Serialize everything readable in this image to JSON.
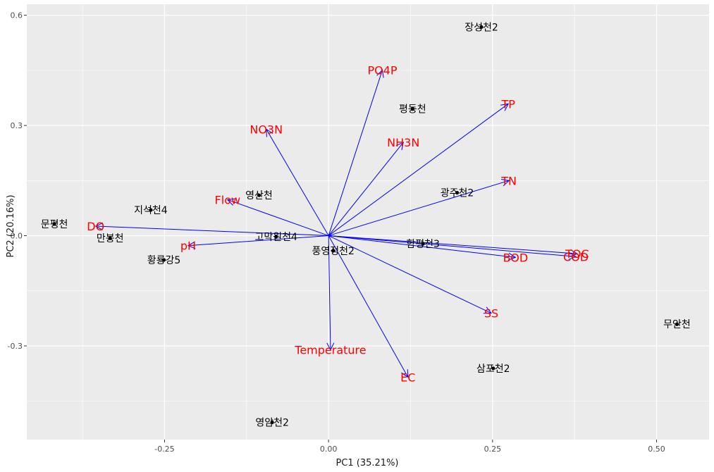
{
  "chart_data": {
    "type": "biplot",
    "xlabel": "PC1 (35.21%)",
    "ylabel": "PC2 (20.16%)",
    "xlim": [
      -0.46,
      0.58
    ],
    "ylim": [
      -0.555,
      0.63
    ],
    "x_ticks": [
      {
        "value": -0.25,
        "label": "-0.25"
      },
      {
        "value": 0.0,
        "label": "0.00"
      },
      {
        "value": 0.25,
        "label": "0.25"
      },
      {
        "value": 0.5,
        "label": "0.50"
      }
    ],
    "y_ticks": [
      {
        "value": 0.6,
        "label": "0.6"
      },
      {
        "value": 0.3,
        "label": "0.3"
      },
      {
        "value": 0.0,
        "label": "0.0"
      },
      {
        "value": -0.3,
        "label": "-0.3"
      }
    ],
    "grid": true,
    "colors": {
      "panel": "#ebebeb",
      "grid": "#ffffff",
      "arrow": "#0000ff",
      "variable_label": "#ff0000",
      "point": "#000000"
    },
    "observations": [
      {
        "label": "장성천2",
        "x": 0.233,
        "y": 0.568
      },
      {
        "label": "평동천",
        "x": 0.128,
        "y": 0.345
      },
      {
        "label": "광주천2",
        "x": 0.196,
        "y": 0.117
      },
      {
        "label": "영산천",
        "x": -0.106,
        "y": 0.11
      },
      {
        "label": "지석천4",
        "x": -0.271,
        "y": 0.07
      },
      {
        "label": "문평천",
        "x": -0.418,
        "y": 0.032
      },
      {
        "label": "만봉천",
        "x": -0.333,
        "y": -0.007
      },
      {
        "label": "고막원천4",
        "x": -0.08,
        "y": -0.003
      },
      {
        "label": "함평천3",
        "x": 0.144,
        "y": -0.022
      },
      {
        "label": "풍영정천2",
        "x": 0.007,
        "y": -0.041
      },
      {
        "label": "황룡강5",
        "x": -0.251,
        "y": -0.066
      },
      {
        "label": "무안천",
        "x": 0.531,
        "y": -0.241
      },
      {
        "label": "삼포천2",
        "x": 0.251,
        "y": -0.361
      },
      {
        "label": "영암천2",
        "x": -0.086,
        "y": -0.508
      }
    ],
    "variables": [
      {
        "label": "PO4P",
        "x": 0.082,
        "y": 0.451
      },
      {
        "label": "TP",
        "x": 0.274,
        "y": 0.359
      },
      {
        "label": "NO3N",
        "x": -0.095,
        "y": 0.29
      },
      {
        "label": "NH3N",
        "x": 0.114,
        "y": 0.254
      },
      {
        "label": "TN",
        "x": 0.275,
        "y": 0.15
      },
      {
        "label": "Flow",
        "x": -0.154,
        "y": 0.098
      },
      {
        "label": "DO",
        "x": -0.355,
        "y": 0.026
      },
      {
        "label": "pH",
        "x": -0.214,
        "y": -0.027
      },
      {
        "label": "BOD",
        "x": 0.285,
        "y": -0.059
      },
      {
        "label": "TOC",
        "x": 0.379,
        "y": -0.049
      },
      {
        "label": "COD",
        "x": 0.377,
        "y": -0.057
      },
      {
        "label": "SS",
        "x": 0.248,
        "y": -0.211
      },
      {
        "label": "Temperature",
        "x": 0.003,
        "y": -0.311
      },
      {
        "label": "EC",
        "x": 0.121,
        "y": -0.385
      }
    ]
  }
}
